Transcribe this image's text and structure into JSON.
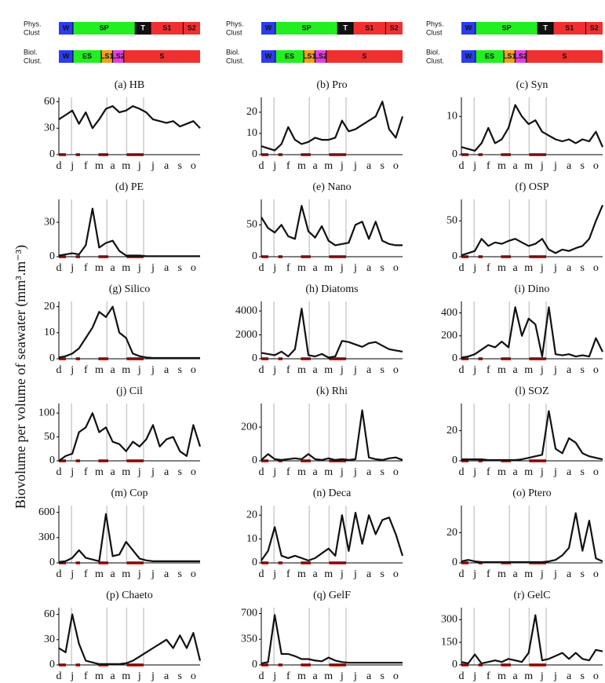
{
  "clusters": {
    "phys_label": [
      "Phys.",
      "Clust"
    ],
    "biol_label": [
      "Biol.",
      "Clust."
    ],
    "phys": [
      {
        "label": "W",
        "color": "#2b3cf0"
      },
      {
        "label": "SP",
        "color": "#22ee22"
      },
      {
        "label": "T",
        "color": "#111111"
      },
      {
        "label": "S1",
        "color": "#f03030"
      },
      {
        "label": "S2",
        "color": "#f03030"
      }
    ],
    "biol": [
      {
        "label": "W",
        "color": "#2b3cf0"
      },
      {
        "label": "ES",
        "color": "#22ee22"
      },
      {
        "label": "LS1",
        "color": "#f0a020"
      },
      {
        "label": "LS2",
        "color": "#e040e0"
      },
      {
        "label": "S",
        "color": "#f03030"
      }
    ]
  },
  "y_label": "Biovolume per volume of seawater (mm³.m⁻³)",
  "chart_data": [
    {
      "type": "line",
      "title": "(a) HB",
      "categories": [
        "d",
        null,
        "j",
        null,
        "f",
        null,
        "m",
        null,
        "a",
        null,
        "m",
        null,
        "j",
        null,
        "j",
        null,
        "a",
        null,
        "s",
        null,
        "o",
        null
      ],
      "values": [
        40,
        45,
        50,
        35,
        48,
        30,
        40,
        52,
        55,
        48,
        50,
        55,
        52,
        48,
        40,
        38,
        36,
        38,
        32,
        35,
        38,
        30
      ],
      "color": "#111111",
      "ylim": [
        0,
        65
      ],
      "yticks": [
        0,
        30,
        60
      ]
    },
    {
      "type": "line",
      "title": "(b) Pro",
      "categories": [
        "d",
        null,
        "j",
        null,
        "f",
        null,
        "m",
        null,
        "a",
        null,
        "m",
        null,
        "j",
        null,
        "j",
        null,
        "a",
        null,
        "s",
        null,
        "o",
        null
      ],
      "values": [
        4,
        3,
        2,
        5,
        13,
        7,
        5,
        6,
        8,
        7,
        7,
        8,
        16,
        11,
        12,
        14,
        16,
        18,
        25,
        12,
        8,
        18
      ],
      "color": "#111111",
      "ylim": [
        0,
        27
      ],
      "yticks": [
        0,
        10,
        20
      ]
    },
    {
      "type": "line",
      "title": "(c) Syn",
      "categories": [
        "d",
        null,
        "j",
        null,
        "f",
        null,
        "m",
        null,
        "a",
        null,
        "m",
        null,
        "j",
        null,
        "j",
        null,
        "a",
        null,
        "s",
        null,
        "o",
        null
      ],
      "values": [
        2,
        1.5,
        1,
        3,
        7,
        3,
        4,
        7,
        13,
        10,
        8,
        9,
        6,
        5,
        4,
        3.5,
        4,
        3,
        4,
        3.5,
        6,
        2
      ],
      "color": "#111111",
      "ylim": [
        0,
        15
      ],
      "yticks": [
        0,
        10
      ]
    },
    {
      "type": "line",
      "title": "(d) PE",
      "categories": [
        "d",
        null,
        "j",
        null,
        "f",
        null,
        "m",
        null,
        "a",
        null,
        "m",
        null,
        "j",
        null,
        "j",
        null,
        "a",
        null,
        "s",
        null,
        "o",
        null
      ],
      "values": [
        1,
        2,
        3,
        2,
        10,
        42,
        8,
        12,
        14,
        5,
        1,
        1,
        1,
        0.5,
        0.5,
        0.5,
        0.5,
        0.5,
        0.5,
        0.5,
        0.5,
        0.5
      ],
      "color": "#111111",
      "ylim": [
        0,
        50
      ],
      "yticks": [
        0,
        30
      ]
    },
    {
      "type": "line",
      "title": "(e) Nano",
      "categories": [
        "d",
        null,
        "j",
        null,
        "f",
        null,
        "m",
        null,
        "a",
        null,
        "m",
        null,
        "j",
        null,
        "j",
        null,
        "a",
        null,
        "s",
        null,
        "o",
        null
      ],
      "values": [
        62,
        45,
        38,
        50,
        32,
        28,
        80,
        40,
        30,
        48,
        25,
        18,
        20,
        22,
        50,
        55,
        28,
        55,
        25,
        20,
        18,
        18
      ],
      "color": "#111111",
      "ylim": [
        0,
        90
      ],
      "yticks": [
        0,
        50
      ]
    },
    {
      "type": "line",
      "title": "(f) OSP",
      "categories": [
        "d",
        null,
        "j",
        null,
        "f",
        null,
        "m",
        null,
        "a",
        null,
        "m",
        null,
        "j",
        null,
        "j",
        null,
        "a",
        null,
        "s",
        null,
        "o",
        null
      ],
      "values": [
        2,
        5,
        8,
        25,
        15,
        20,
        18,
        22,
        25,
        20,
        15,
        18,
        25,
        10,
        5,
        10,
        8,
        12,
        15,
        25,
        50,
        72
      ],
      "color": "#111111",
      "ylim": [
        0,
        80
      ],
      "yticks": [
        0,
        50
      ]
    },
    {
      "type": "line",
      "title": "(g) Silico",
      "categories": [
        "d",
        null,
        "j",
        null,
        "f",
        null,
        "m",
        null,
        "a",
        null,
        "m",
        null,
        "j",
        null,
        "j",
        null,
        "a",
        null,
        "s",
        null,
        "o",
        null
      ],
      "values": [
        0.5,
        1,
        2,
        4,
        8,
        12,
        18,
        16,
        20,
        10,
        8,
        2,
        1,
        0.5,
        0.3,
        0.3,
        0.3,
        0.3,
        0.3,
        0.3,
        0.3,
        0.3
      ],
      "color": "#111111",
      "ylim": [
        0,
        22
      ],
      "yticks": [
        0,
        10,
        20
      ]
    },
    {
      "type": "line",
      "title": "(h) Diatoms",
      "categories": [
        "d",
        null,
        "j",
        null,
        "f",
        null,
        "m",
        null,
        "a",
        null,
        "m",
        null,
        "j",
        null,
        "j",
        null,
        "a",
        null,
        "s",
        null,
        "o",
        null
      ],
      "values": [
        500,
        400,
        300,
        600,
        200,
        800,
        4200,
        300,
        200,
        400,
        100,
        200,
        1500,
        1400,
        1200,
        1000,
        1300,
        1400,
        1100,
        800,
        700,
        600
      ],
      "color": "#111111",
      "ylim": [
        0,
        4800
      ],
      "yticks": [
        0,
        2000,
        4000
      ]
    },
    {
      "type": "line",
      "title": "(i) Dino",
      "categories": [
        "d",
        null,
        "j",
        null,
        "f",
        null,
        "m",
        null,
        "a",
        null,
        "m",
        null,
        "j",
        null,
        "j",
        null,
        "a",
        null,
        "s",
        null,
        "o",
        null
      ],
      "values": [
        10,
        20,
        40,
        80,
        120,
        100,
        150,
        100,
        450,
        200,
        350,
        300,
        20,
        450,
        40,
        30,
        40,
        20,
        30,
        20,
        180,
        60
      ],
      "color": "#111111",
      "ylim": [
        0,
        500
      ],
      "yticks": [
        0,
        200,
        400
      ]
    },
    {
      "type": "line",
      "title": "(j) Cil",
      "categories": [
        "d",
        null,
        "j",
        null,
        "f",
        null,
        "m",
        null,
        "a",
        null,
        "m",
        null,
        "j",
        null,
        "j",
        null,
        "a",
        null,
        "s",
        null,
        "o",
        null
      ],
      "values": [
        0,
        10,
        15,
        60,
        70,
        100,
        60,
        70,
        40,
        35,
        20,
        40,
        30,
        45,
        75,
        30,
        45,
        50,
        20,
        10,
        75,
        30
      ],
      "color": "#111111",
      "ylim": [
        0,
        120
      ],
      "yticks": [
        0,
        50,
        100
      ]
    },
    {
      "type": "line",
      "title": "(k) Rhi",
      "categories": [
        "d",
        null,
        "j",
        null,
        "f",
        null,
        "m",
        null,
        "a",
        null,
        "m",
        null,
        "j",
        null,
        "j",
        null,
        "a",
        null,
        "s",
        null,
        "o",
        null
      ],
      "values": [
        5,
        40,
        10,
        5,
        10,
        15,
        10,
        40,
        10,
        5,
        15,
        5,
        10,
        5,
        10,
        300,
        20,
        10,
        5,
        15,
        20,
        5
      ],
      "color": "#111111",
      "ylim": [
        0,
        340
      ],
      "yticks": [
        0,
        200
      ]
    },
    {
      "type": "line",
      "title": "(l) SOZ",
      "categories": [
        "d",
        null,
        "j",
        null,
        "f",
        null,
        "m",
        null,
        "a",
        null,
        "m",
        null,
        "j",
        null,
        "j",
        null,
        "a",
        null,
        "s",
        null,
        "o",
        null
      ],
      "values": [
        1,
        1,
        1,
        1,
        0.5,
        0.5,
        0.5,
        0.5,
        0.5,
        1,
        2,
        3,
        4,
        33,
        8,
        5,
        15,
        12,
        5,
        3,
        2,
        1
      ],
      "color": "#111111",
      "ylim": [
        0,
        38
      ],
      "yticks": [
        0,
        20
      ]
    },
    {
      "type": "line",
      "title": "(m) Cop",
      "categories": [
        "d",
        null,
        "j",
        null,
        "f",
        null,
        "m",
        null,
        "a",
        null,
        "m",
        null,
        "j",
        null,
        "j",
        null,
        "a",
        null,
        "s",
        null,
        "o",
        null
      ],
      "values": [
        10,
        20,
        60,
        150,
        60,
        40,
        20,
        580,
        80,
        100,
        250,
        150,
        50,
        30,
        20,
        20,
        20,
        20,
        20,
        20,
        20,
        20
      ],
      "color": "#111111",
      "ylim": [
        0,
        680
      ],
      "yticks": [
        0,
        300,
        600
      ]
    },
    {
      "type": "line",
      "title": "(n) Deca",
      "categories": [
        "d",
        null,
        "j",
        null,
        "f",
        null,
        "m",
        null,
        "a",
        null,
        "m",
        null,
        "j",
        null,
        "j",
        null,
        "a",
        null,
        "s",
        null,
        "o",
        null
      ],
      "values": [
        1,
        5,
        15,
        3,
        2,
        3,
        2,
        1,
        2,
        4,
        6,
        3,
        20,
        5,
        21,
        8,
        20,
        12,
        18,
        19,
        12,
        3
      ],
      "color": "#111111",
      "ylim": [
        0,
        24
      ],
      "yticks": [
        0,
        10,
        20
      ]
    },
    {
      "type": "line",
      "title": "(o) Ptero",
      "categories": [
        "d",
        null,
        "j",
        null,
        "f",
        null,
        "m",
        null,
        "a",
        null,
        "m",
        null,
        "j",
        null,
        "j",
        null,
        "a",
        null,
        "s",
        null,
        "o",
        null
      ],
      "values": [
        1,
        2,
        1,
        0.5,
        0.5,
        0.5,
        0.5,
        0.5,
        0.5,
        0.5,
        0.5,
        0.5,
        0.5,
        1,
        2,
        5,
        10,
        33,
        8,
        28,
        3,
        1
      ],
      "color": "#111111",
      "ylim": [
        0,
        38
      ],
      "yticks": [
        0,
        20
      ]
    },
    {
      "type": "line",
      "title": "(p) Chaeto",
      "categories": [
        "d",
        null,
        "j",
        null,
        "f",
        null,
        "m",
        null,
        "a",
        null,
        "m",
        null,
        "j",
        null,
        "j",
        null,
        "a",
        null,
        "s",
        null,
        "o",
        null
      ],
      "values": [
        20,
        15,
        60,
        25,
        5,
        3,
        1,
        1,
        1,
        1,
        2,
        5,
        10,
        15,
        20,
        25,
        30,
        20,
        35,
        20,
        38,
        5
      ],
      "color": "#111111",
      "ylim": [
        0,
        68
      ],
      "yticks": [
        0,
        30,
        60
      ]
    },
    {
      "type": "line",
      "title": "(q) GelF",
      "categories": [
        "d",
        null,
        "j",
        null,
        "f",
        null,
        "m",
        null,
        "a",
        null,
        "m",
        null,
        "j",
        null,
        "j",
        null,
        "a",
        null,
        "s",
        null,
        "o",
        null
      ],
      "values": [
        20,
        40,
        680,
        150,
        150,
        120,
        80,
        80,
        60,
        50,
        100,
        60,
        40,
        30,
        30,
        30,
        30,
        30,
        30,
        30,
        30,
        30
      ],
      "color": "#111111",
      "ylim": [
        0,
        780
      ],
      "yticks": [
        0,
        350,
        700
      ]
    },
    {
      "type": "line",
      "title": "(r) GelC",
      "categories": [
        "d",
        null,
        "j",
        null,
        "f",
        null,
        "m",
        null,
        "a",
        null,
        "m",
        null,
        "j",
        null,
        "j",
        null,
        "a",
        null,
        "s",
        null,
        "o",
        null
      ],
      "values": [
        20,
        10,
        70,
        10,
        20,
        30,
        20,
        40,
        30,
        20,
        80,
        330,
        30,
        40,
        60,
        80,
        40,
        80,
        40,
        30,
        100,
        90
      ],
      "color": "#111111",
      "ylim": [
        0,
        380
      ],
      "yticks": [
        0,
        150,
        300
      ]
    }
  ]
}
